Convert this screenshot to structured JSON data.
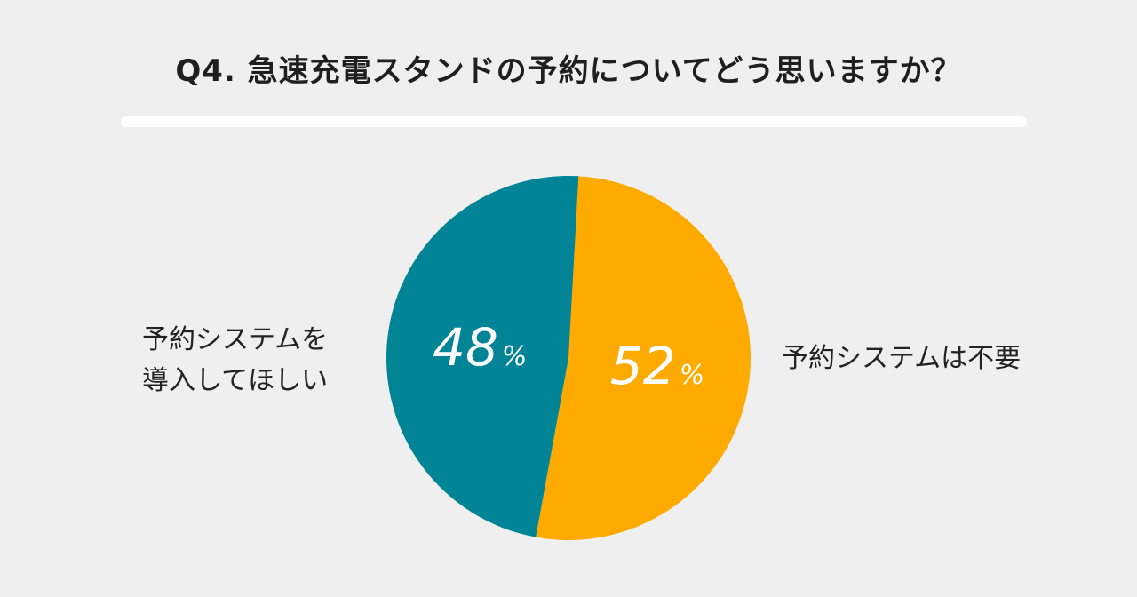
{
  "title": "Q4. 急速充電スタンドの予約についてどう思いますか？",
  "chart_data": {
    "type": "pie",
    "title": "Q4. 急速充電スタンドの予約についてどう思いますか？",
    "slices": [
      {
        "label_lines": [
          "予約システムは不要"
        ],
        "value": 52,
        "display": "52",
        "unit": "%",
        "color": "#FFAA00"
      },
      {
        "label_lines": [
          "予約システムを",
          "導入してほしい"
        ],
        "value": 48,
        "display": "48",
        "unit": "%",
        "color": "#008496"
      }
    ]
  }
}
